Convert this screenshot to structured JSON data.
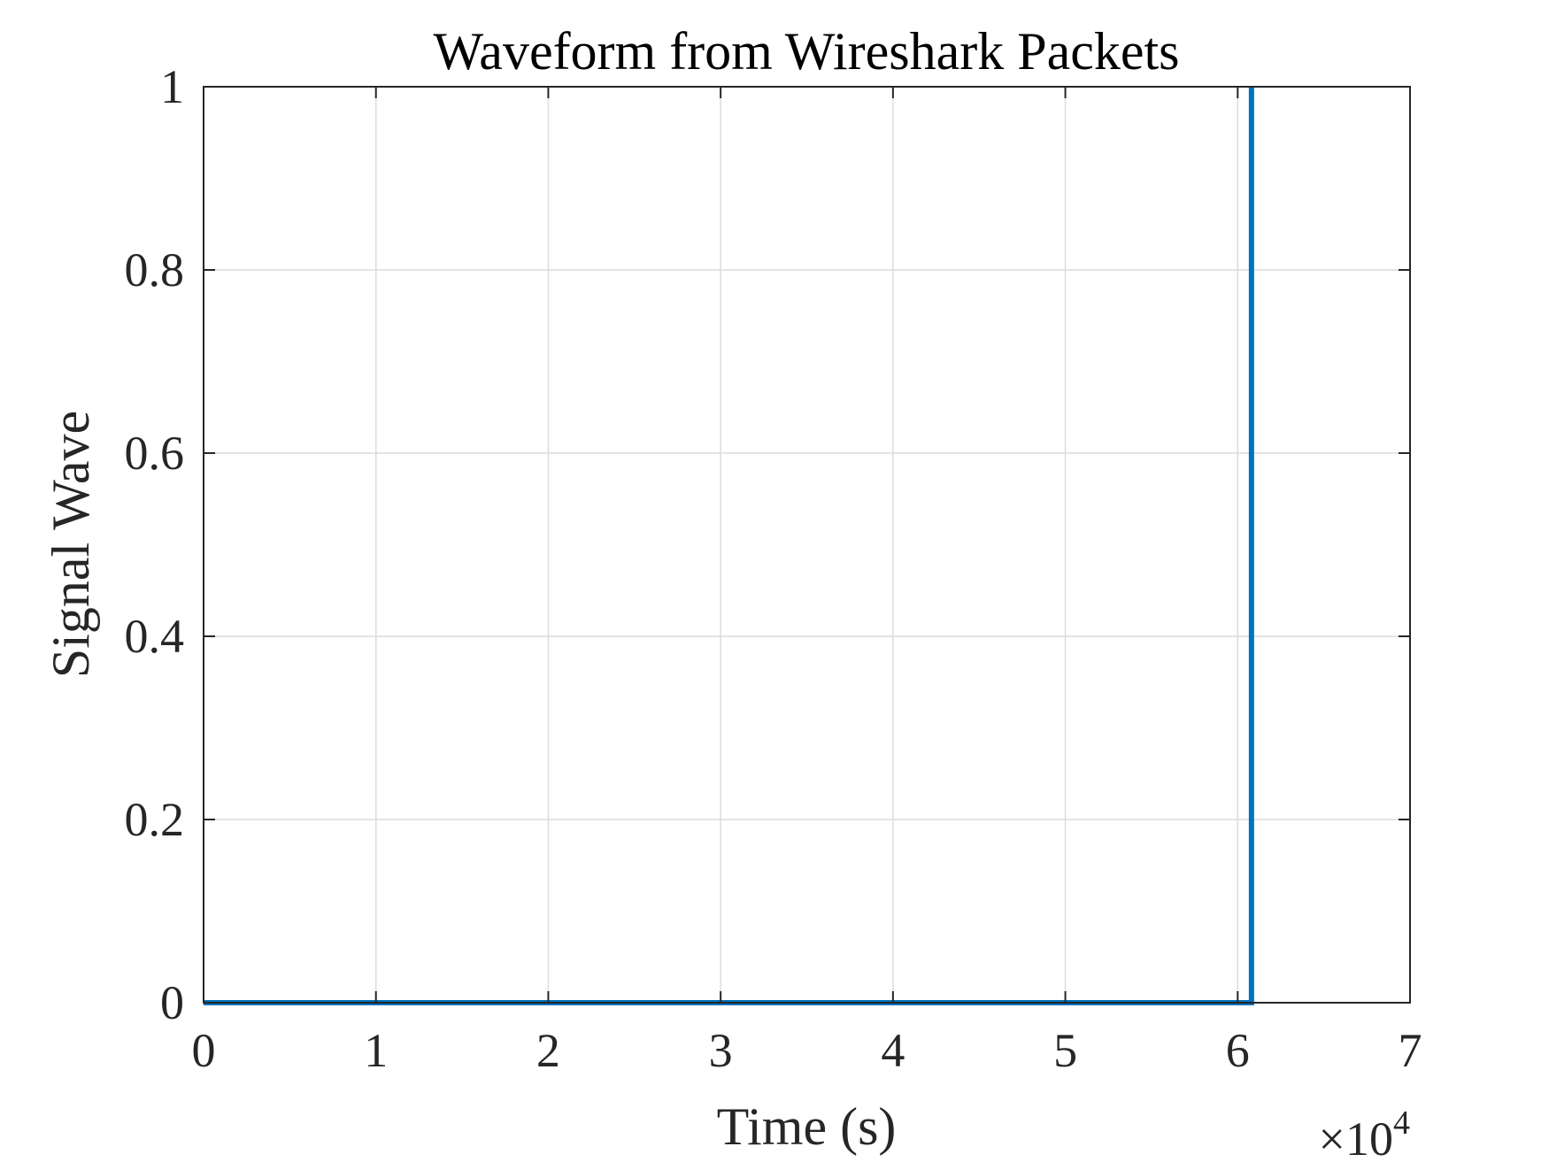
{
  "chart_data": {
    "type": "line",
    "title": "Waveform from Wireshark Packets",
    "xlabel": "Time (s)",
    "ylabel": "Signal Wave",
    "x_exponent": {
      "prefix": "×10",
      "power": "4"
    },
    "xlim": [
      0,
      70000
    ],
    "ylim": [
      0,
      1
    ],
    "xticks": [
      0,
      10000,
      20000,
      30000,
      40000,
      50000,
      60000,
      70000
    ],
    "xtick_labels": [
      "0",
      "1",
      "2",
      "3",
      "4",
      "5",
      "6",
      "7"
    ],
    "yticks": [
      0,
      0.2,
      0.4,
      0.6,
      0.8,
      1
    ],
    "ytick_labels": [
      "0",
      "0.2",
      "0.4",
      "0.6",
      "0.8",
      "1"
    ],
    "grid": true,
    "series": [
      {
        "color": "#0072BD",
        "x": [
          0,
          60800,
          60800
        ],
        "y": [
          0,
          0,
          1
        ]
      }
    ]
  }
}
